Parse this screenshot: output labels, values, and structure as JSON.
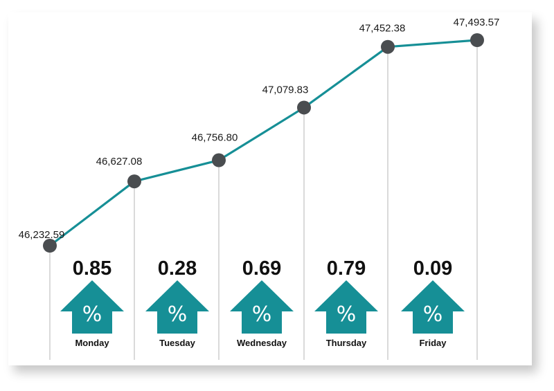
{
  "chart_data": {
    "type": "line",
    "categories": [
      "Monday",
      "Tuesday",
      "Wednesday",
      "Thursday",
      "Friday"
    ],
    "closing_values": [
      46232.59,
      46627.08,
      46756.8,
      47079.83,
      47452.38,
      47493.57
    ],
    "closing_labels": [
      "46,232.59",
      "46,627.08",
      "46,756.80",
      "47,079.83",
      "47,452.38",
      "47,493.57"
    ],
    "daily_change_percent": [
      "0.85",
      "0.28",
      "0.69",
      "0.79",
      "0.09"
    ],
    "direction": "up",
    "arrow_symbol": "%",
    "ylim": [
      46100,
      47600
    ],
    "grid": false,
    "colors": {
      "line": "#168f96",
      "marker": "#4a4d50",
      "arrow": "#168f96",
      "drop_line": "#b5b5b5"
    }
  },
  "icons": {
    "change_arrow": "up-arrow-percent-icon"
  }
}
